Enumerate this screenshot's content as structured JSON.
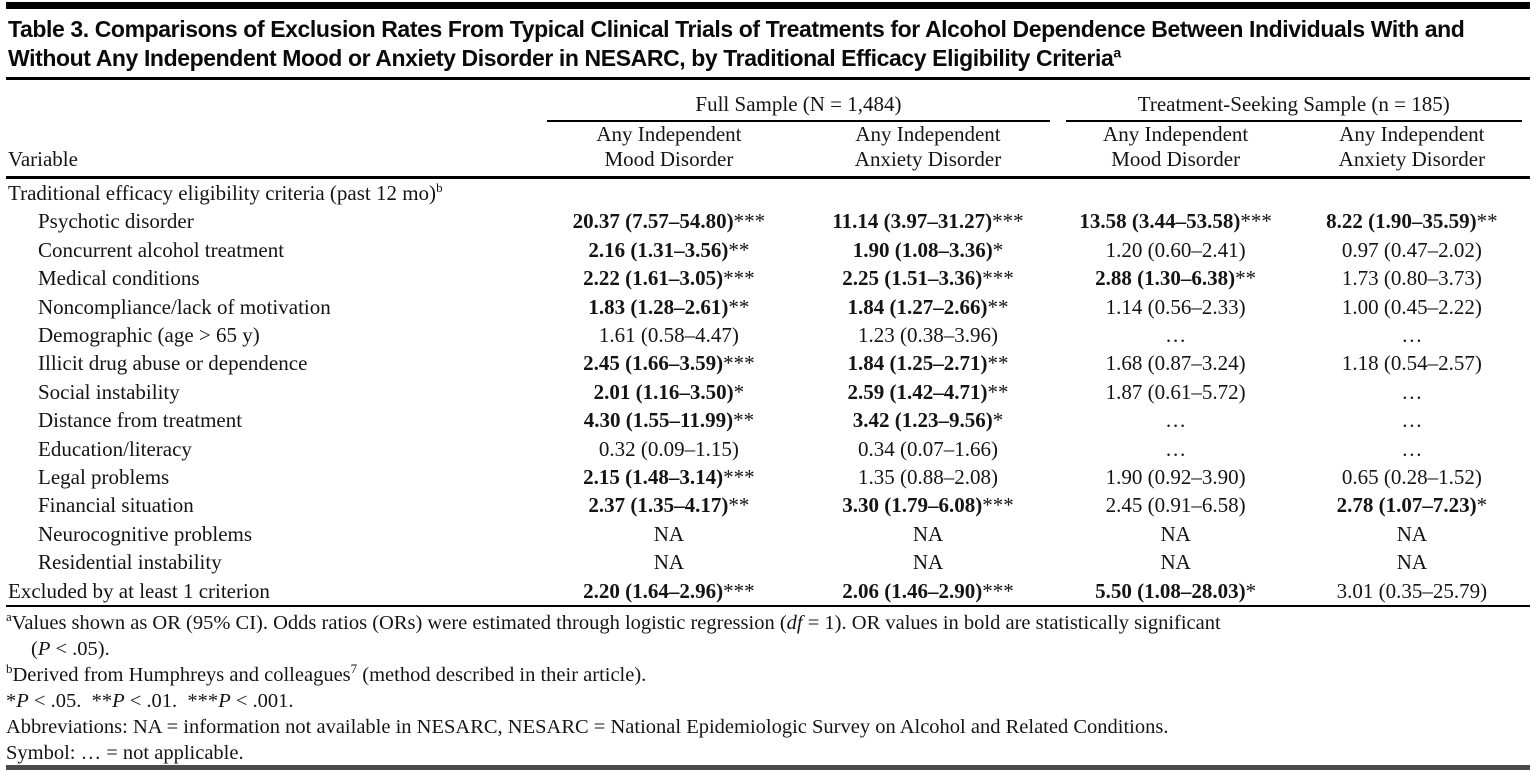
{
  "page": {
    "title": "Table 3. Comparisons of Exclusion Rates From Typical Clinical Trials of Treatments for Alcohol Dependence Between Individuals With and Without Any Independent Mood or Anxiety Disorder in NESARC, by Traditional Efficacy Eligibility Criteria",
    "title_sup": "a"
  },
  "colors": {
    "text": "#141414",
    "rule": "#000000",
    "bottom_bar": "#4a4a4a"
  },
  "table": {
    "variable_header": "Variable",
    "groups": [
      {
        "label": "Full Sample (N = 1,484)",
        "subcolumns": [
          "Any Independent Mood Disorder",
          "Any Independent Anxiety Disorder"
        ]
      },
      {
        "label": "Treatment-Seeking Sample (n = 185)",
        "subcolumns": [
          "Any Independent Mood Disorder",
          "Any Independent Anxiety Disorder"
        ]
      }
    ],
    "rows": [
      {
        "label": "Traditional efficacy eligibility criteria (past 12 mo)",
        "sup": "b",
        "indent": false,
        "cells": [
          {
            "value": "",
            "stars": "",
            "bold": false
          },
          {
            "value": "",
            "stars": "",
            "bold": false
          },
          {
            "value": "",
            "stars": "",
            "bold": false
          },
          {
            "value": "",
            "stars": "",
            "bold": false
          }
        ]
      },
      {
        "label": "Psychotic disorder",
        "indent": true,
        "cells": [
          {
            "value": "20.37 (7.57–54.80)",
            "stars": "***",
            "bold": true
          },
          {
            "value": "11.14 (3.97–31.27)",
            "stars": "***",
            "bold": true
          },
          {
            "value": "13.58 (3.44–53.58)",
            "stars": "***",
            "bold": true
          },
          {
            "value": "8.22 (1.90–35.59)",
            "stars": "**",
            "bold": true
          }
        ]
      },
      {
        "label": "Concurrent alcohol treatment",
        "indent": true,
        "cells": [
          {
            "value": "2.16 (1.31–3.56)",
            "stars": "**",
            "bold": true
          },
          {
            "value": "1.90 (1.08–3.36)",
            "stars": "*",
            "bold": true
          },
          {
            "value": "1.20 (0.60–2.41)",
            "stars": "",
            "bold": false
          },
          {
            "value": "0.97 (0.47–2.02)",
            "stars": "",
            "bold": false
          }
        ]
      },
      {
        "label": "Medical conditions",
        "indent": true,
        "cells": [
          {
            "value": "2.22 (1.61–3.05)",
            "stars": "***",
            "bold": true
          },
          {
            "value": "2.25 (1.51–3.36)",
            "stars": "***",
            "bold": true
          },
          {
            "value": "2.88 (1.30–6.38)",
            "stars": "**",
            "bold": true
          },
          {
            "value": "1.73 (0.80–3.73)",
            "stars": "",
            "bold": false
          }
        ]
      },
      {
        "label": "Noncompliance/lack of motivation",
        "indent": true,
        "cells": [
          {
            "value": "1.83 (1.28–2.61)",
            "stars": "**",
            "bold": true
          },
          {
            "value": "1.84 (1.27–2.66)",
            "stars": "**",
            "bold": true
          },
          {
            "value": "1.14 (0.56–2.33)",
            "stars": "",
            "bold": false
          },
          {
            "value": "1.00 (0.45–2.22)",
            "stars": "",
            "bold": false
          }
        ]
      },
      {
        "label": "Demographic (age > 65 y)",
        "indent": true,
        "cells": [
          {
            "value": "1.61 (0.58–4.47)",
            "stars": "",
            "bold": false
          },
          {
            "value": "1.23 (0.38–3.96)",
            "stars": "",
            "bold": false
          },
          {
            "value": "…",
            "stars": "",
            "bold": false
          },
          {
            "value": "…",
            "stars": "",
            "bold": false
          }
        ]
      },
      {
        "label": "Illicit drug abuse or dependence",
        "indent": true,
        "cells": [
          {
            "value": "2.45 (1.66–3.59)",
            "stars": "***",
            "bold": true
          },
          {
            "value": "1.84 (1.25–2.71)",
            "stars": "**",
            "bold": true
          },
          {
            "value": "1.68 (0.87–3.24)",
            "stars": "",
            "bold": false
          },
          {
            "value": "1.18 (0.54–2.57)",
            "stars": "",
            "bold": false
          }
        ]
      },
      {
        "label": "Social instability",
        "indent": true,
        "cells": [
          {
            "value": "2.01 (1.16–3.50)",
            "stars": "*",
            "bold": true
          },
          {
            "value": "2.59 (1.42–4.71)",
            "stars": "**",
            "bold": true
          },
          {
            "value": "1.87 (0.61–5.72)",
            "stars": "",
            "bold": false
          },
          {
            "value": "…",
            "stars": "",
            "bold": false
          }
        ]
      },
      {
        "label": "Distance from treatment",
        "indent": true,
        "cells": [
          {
            "value": "4.30 (1.55–11.99)",
            "stars": "**",
            "bold": true
          },
          {
            "value": "3.42 (1.23–9.56)",
            "stars": "*",
            "bold": true
          },
          {
            "value": "…",
            "stars": "",
            "bold": false
          },
          {
            "value": "…",
            "stars": "",
            "bold": false
          }
        ]
      },
      {
        "label": "Education/literacy",
        "indent": true,
        "cells": [
          {
            "value": "0.32 (0.09–1.15)",
            "stars": "",
            "bold": false
          },
          {
            "value": "0.34 (0.07–1.66)",
            "stars": "",
            "bold": false
          },
          {
            "value": "…",
            "stars": "",
            "bold": false
          },
          {
            "value": "…",
            "stars": "",
            "bold": false
          }
        ]
      },
      {
        "label": "Legal problems",
        "indent": true,
        "cells": [
          {
            "value": "2.15 (1.48–3.14)",
            "stars": "***",
            "bold": true
          },
          {
            "value": "1.35 (0.88–2.08)",
            "stars": "",
            "bold": false
          },
          {
            "value": "1.90 (0.92–3.90)",
            "stars": "",
            "bold": false
          },
          {
            "value": "0.65 (0.28–1.52)",
            "stars": "",
            "bold": false
          }
        ]
      },
      {
        "label": "Financial situation",
        "indent": true,
        "cells": [
          {
            "value": "2.37 (1.35–4.17)",
            "stars": "**",
            "bold": true
          },
          {
            "value": "3.30 (1.79–6.08)",
            "stars": "***",
            "bold": true
          },
          {
            "value": "2.45 (0.91–6.58)",
            "stars": "",
            "bold": false
          },
          {
            "value": "2.78 (1.07–7.23)",
            "stars": "*",
            "bold": true
          }
        ]
      },
      {
        "label": "Neurocognitive problems",
        "indent": true,
        "cells": [
          {
            "value": "NA",
            "stars": "",
            "bold": false
          },
          {
            "value": "NA",
            "stars": "",
            "bold": false
          },
          {
            "value": "NA",
            "stars": "",
            "bold": false
          },
          {
            "value": "NA",
            "stars": "",
            "bold": false
          }
        ]
      },
      {
        "label": "Residential instability",
        "indent": true,
        "cells": [
          {
            "value": "NA",
            "stars": "",
            "bold": false
          },
          {
            "value": "NA",
            "stars": "",
            "bold": false
          },
          {
            "value": "NA",
            "stars": "",
            "bold": false
          },
          {
            "value": "NA",
            "stars": "",
            "bold": false
          }
        ]
      },
      {
        "label": "Excluded by at least 1 criterion",
        "indent": false,
        "cells": [
          {
            "value": "2.20 (1.64–2.96)",
            "stars": "***",
            "bold": true
          },
          {
            "value": "2.06 (1.46–2.90)",
            "stars": "***",
            "bold": true
          },
          {
            "value": "5.50 (1.08–28.03)",
            "stars": "*",
            "bold": true
          },
          {
            "value": "3.01 (0.35–25.79)",
            "stars": "",
            "bold": false
          }
        ]
      }
    ]
  },
  "footnotes": [
    {
      "parts": [
        {
          "st": "sup",
          "t": "a"
        },
        {
          "st": "n",
          "t": "Values shown as OR (95% CI). Odds ratios (ORs) were estimated through logistic regression ("
        },
        {
          "st": "i",
          "t": "df"
        },
        {
          "st": "n",
          "t": " = 1). OR values in bold are statistically significant"
        },
        {
          "st": "br",
          "t": ""
        },
        {
          "st": "n",
          "t": "("
        },
        {
          "st": "i",
          "t": "P"
        },
        {
          "st": "n",
          "t": " < .05)."
        }
      ]
    },
    {
      "parts": [
        {
          "st": "sup",
          "t": "b"
        },
        {
          "st": "n",
          "t": "Derived from Humphreys and colleagues"
        },
        {
          "st": "sup",
          "t": "7"
        },
        {
          "st": "n",
          "t": " (method described in their article)."
        }
      ]
    },
    {
      "parts": [
        {
          "st": "n",
          "t": "*"
        },
        {
          "st": "i",
          "t": "P"
        },
        {
          "st": "n",
          "t": " < .05.  **"
        },
        {
          "st": "i",
          "t": "P"
        },
        {
          "st": "n",
          "t": " < .01.  ***"
        },
        {
          "st": "i",
          "t": "P"
        },
        {
          "st": "n",
          "t": " < .001."
        }
      ]
    },
    {
      "parts": [
        {
          "st": "n",
          "t": "Abbreviations: NA = information not available in NESARC, NESARC = National Epidemiologic Survey on Alcohol and Related Conditions."
        }
      ]
    },
    {
      "parts": [
        {
          "st": "n",
          "t": "Symbol: … = not applicable."
        }
      ]
    }
  ]
}
